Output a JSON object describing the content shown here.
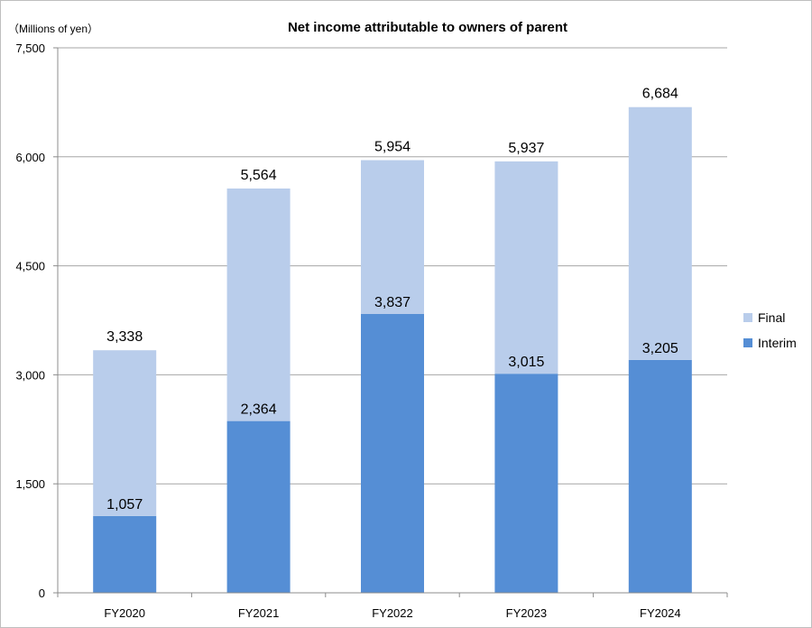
{
  "chart_data": {
    "type": "bar",
    "stacked": true,
    "title": "Net income attributable to owners of parent",
    "unit_label": "（Millions of yen）",
    "categories": [
      "FY2020",
      "FY2021",
      "FY2022",
      "FY2023",
      "FY2024"
    ],
    "series": [
      {
        "name": "Interim",
        "color": "#558ed5",
        "values": [
          1057,
          2364,
          3837,
          3015,
          3205
        ],
        "labels": [
          "1,057",
          "2,364",
          "3,837",
          "3,015",
          "3,205"
        ]
      },
      {
        "name": "Final",
        "color": "#b9cdeb",
        "values": [
          2281,
          3200,
          2117,
          2922,
          3479
        ]
      }
    ],
    "totals": [
      3338,
      5564,
      5954,
      5937,
      6684
    ],
    "total_labels": [
      "3,338",
      "5,564",
      "5,954",
      "5,937",
      "6,684"
    ],
    "ylim": [
      0,
      7500
    ],
    "yticks": [
      0,
      1500,
      3000,
      4500,
      6000,
      7500
    ],
    "ytick_labels": [
      "0",
      "1,500",
      "3,000",
      "4,500",
      "6,000",
      "7,500"
    ],
    "grid": true,
    "legend_position": "right",
    "legend": [
      "Final",
      "Interim"
    ]
  }
}
